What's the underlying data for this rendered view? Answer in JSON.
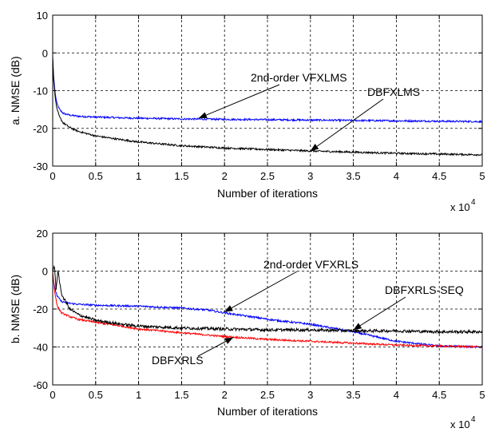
{
  "chart_data": [
    {
      "type": "line",
      "ylabel": "a. NMSE (dB)",
      "xlabel": "Number of iterations",
      "x_multiplier_label": "x 10",
      "x_multiplier_exp": "4",
      "xlim": [
        0,
        5
      ],
      "ylim": [
        -30,
        10
      ],
      "xticks": [
        "0",
        "0.5",
        "1",
        "1.5",
        "2",
        "2.5",
        "3",
        "3.5",
        "4",
        "4.5",
        "5"
      ],
      "yticks": [
        "10",
        "0",
        "-10",
        "-20",
        "-30"
      ],
      "grid": true,
      "series": [
        {
          "name": "2nd-order VFXLMS",
          "color": "#0000ff",
          "x": [
            0,
            0.01,
            0.03,
            0.05,
            0.08,
            0.12,
            0.2,
            0.3,
            0.5,
            0.8,
            1,
            1.5,
            2,
            2.5,
            3,
            3.5,
            4,
            4.5,
            5
          ],
          "y": [
            -1,
            -6,
            -11,
            -13.5,
            -15,
            -16,
            -16.5,
            -16.8,
            -17,
            -17.2,
            -17.3,
            -17.5,
            -17.6,
            -17.7,
            -17.8,
            -17.9,
            -18,
            -18.1,
            -18.2
          ]
        },
        {
          "name": "DBFXLMS",
          "color": "#000000",
          "x": [
            0,
            0.01,
            0.03,
            0.05,
            0.08,
            0.12,
            0.2,
            0.3,
            0.5,
            0.8,
            1,
            1.5,
            2,
            2.5,
            3,
            3.5,
            4,
            4.5,
            5
          ],
          "y": [
            -1,
            -7,
            -12,
            -15,
            -17,
            -18.5,
            -19.8,
            -20.8,
            -22,
            -23,
            -23.6,
            -24.6,
            -25.2,
            -25.6,
            -26,
            -26.3,
            -26.6,
            -26.8,
            -27
          ]
        }
      ],
      "annotations": [
        {
          "text": "2nd-order VFXLMS",
          "series": "2nd-order VFXLMS",
          "x": 1.7,
          "y": -17.3
        },
        {
          "text": "DBFXLMS",
          "series": "DBFXLMS",
          "x": 3.0,
          "y": -26.0
        }
      ]
    },
    {
      "type": "line",
      "ylabel": "b. NMSE (dB)",
      "xlabel": "Number of iterations",
      "x_multiplier_label": "x 10",
      "x_multiplier_exp": "4",
      "xlim": [
        0,
        5
      ],
      "ylim": [
        -60,
        20
      ],
      "xticks": [
        "0",
        "0.5",
        "1",
        "1.5",
        "2",
        "2.5",
        "3",
        "3.5",
        "4",
        "4.5",
        "5"
      ],
      "yticks": [
        "20",
        "0",
        "-20",
        "-40",
        "-60"
      ],
      "grid": true,
      "series": [
        {
          "name": "2nd-order VFXRLS",
          "color": "#0000ff",
          "x": [
            0,
            0.02,
            0.05,
            0.1,
            0.2,
            0.3,
            0.5,
            1,
            1.5,
            1.8,
            2,
            2.3,
            2.6,
            3,
            3.5,
            4,
            4.5,
            5
          ],
          "y": [
            -2,
            -8,
            -13,
            -16,
            -17,
            -17.5,
            -18,
            -18.5,
            -19.5,
            -20.5,
            -22,
            -24,
            -26,
            -28,
            -32,
            -37,
            -39.5,
            -40
          ]
        },
        {
          "name": "DBFXRLS",
          "color": "#ff0000",
          "x": [
            0,
            0.02,
            0.05,
            0.1,
            0.2,
            0.3,
            0.5,
            0.8,
            1,
            1.5,
            2,
            2.5,
            3,
            3.5,
            4,
            4.5,
            5
          ],
          "y": [
            0,
            -10,
            -18,
            -22,
            -24,
            -25.5,
            -27,
            -29,
            -30.5,
            -32.5,
            -34.5,
            -36,
            -37,
            -38,
            -39,
            -39.5,
            -40
          ]
        },
        {
          "name": "DBFXRLS-SEQ",
          "color": "#000000",
          "x": [
            0,
            0.02,
            0.04,
            0.06,
            0.1,
            0.2,
            0.3,
            0.5,
            0.8,
            1,
            1.5,
            2,
            2.5,
            3,
            3.5,
            4,
            4.5,
            5
          ],
          "y": [
            0,
            3,
            -10,
            1,
            -12,
            -20,
            -23,
            -26,
            -28,
            -29,
            -30,
            -30.5,
            -31,
            -31,
            -31.5,
            -31.5,
            -32,
            -32
          ]
        }
      ],
      "annotations": [
        {
          "text": "2nd-order VFXRLS",
          "series": "2nd-order VFXRLS",
          "x": 2.0,
          "y": -21.5
        },
        {
          "text": "DBFXRLS-SEQ",
          "series": "DBFXRLS-SEQ",
          "x": 3.5,
          "y": -31.0
        },
        {
          "text": "DBFXRLS",
          "series": "DBFXRLS",
          "x": 2.1,
          "y": -35.0
        }
      ]
    }
  ]
}
